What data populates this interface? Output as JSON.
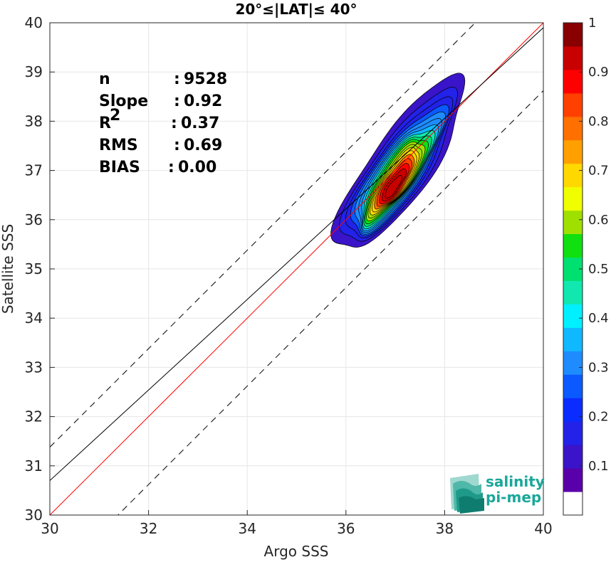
{
  "chart_data": {
    "type": "contour-density-scatter",
    "title": "20°≤|LAT|≤ 40°",
    "xlabel": "Argo SSS",
    "ylabel": "Satellite SSS",
    "xlim": [
      30,
      40
    ],
    "ylim": [
      30,
      40
    ],
    "xticks": [
      "30",
      "32",
      "34",
      "36",
      "38",
      "40"
    ],
    "yticks": [
      "30",
      "31",
      "32",
      "33",
      "34",
      "35",
      "36",
      "37",
      "38",
      "39",
      "40"
    ],
    "grid": true,
    "stats": [
      {
        "label": "n",
        "sep": ": ",
        "value": "9528"
      },
      {
        "label": "Slope",
        "sep": ": ",
        "value": "0.92"
      },
      {
        "label": "R",
        "sup": "2",
        "sep": ": ",
        "value": "0.37"
      },
      {
        "label": "RMS",
        "sep": ": ",
        "value": "0.69"
      },
      {
        "label": "BIAS",
        "sep": ": ",
        "value": "0.00"
      }
    ],
    "lines": [
      {
        "kind": "one-to-one",
        "color": "#ff0000",
        "slope": 1.0,
        "intercept": 0.0
      },
      {
        "kind": "regression",
        "color": "#000000",
        "slope": 0.92,
        "intercept": 3.1
      },
      {
        "kind": "plus-2rms",
        "color": "#000000",
        "dashed": true,
        "slope": 1.0,
        "intercept": 1.38
      },
      {
        "kind": "minus-2rms",
        "color": "#000000",
        "dashed": true,
        "slope": 1.0,
        "intercept": -1.38
      }
    ],
    "density": {
      "center": [
        37.1,
        37.1
      ],
      "major_half_axis": 2.1,
      "minor_half_axis": 0.62,
      "angle_deg": 55,
      "level_step": 0.05,
      "levels": [
        0.05,
        0.1,
        0.15,
        0.2,
        0.25,
        0.3,
        0.35,
        0.4,
        0.45,
        0.5,
        0.55,
        0.6,
        0.65,
        0.7,
        0.75,
        0.8,
        0.85,
        0.9,
        0.95
      ]
    },
    "colorbar": {
      "ticks": [
        "0.1",
        "0.2",
        "0.3",
        "0.4",
        "0.5",
        "0.6",
        "0.7",
        "0.8",
        "0.9",
        "1"
      ],
      "range": [
        0,
        1
      ],
      "colors": [
        "#ffffff",
        "#5a00aa",
        "#3a14c8",
        "#2222e8",
        "#0a2cff",
        "#0a5aff",
        "#1e8cff",
        "#10b8ff",
        "#00f0ff",
        "#10e8b0",
        "#00e070",
        "#10e010",
        "#a0e000",
        "#f0ff00",
        "#ffd800",
        "#ffa000",
        "#ff7000",
        "#ff4000",
        "#ff0000",
        "#c80000",
        "#880000"
      ]
    },
    "logo": {
      "line1": "salinity",
      "line2": "pi-mep"
    }
  }
}
